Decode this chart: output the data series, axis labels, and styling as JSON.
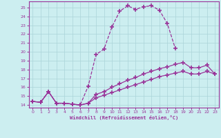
{
  "xlabel": "Windchill (Refroidissement éolien,°C)",
  "bg_color": "#cceef0",
  "line_color": "#993399",
  "grid_color": "#aad4d8",
  "xlim": [
    -0.5,
    23.5
  ],
  "ylim": [
    13.7,
    25.7
  ],
  "yticks": [
    14,
    15,
    16,
    17,
    18,
    19,
    20,
    21,
    22,
    23,
    24,
    25
  ],
  "xticks": [
    0,
    1,
    2,
    3,
    4,
    5,
    6,
    7,
    8,
    9,
    10,
    11,
    12,
    13,
    14,
    15,
    16,
    17,
    18,
    19,
    20,
    21,
    22,
    23
  ],
  "series": [
    {
      "x": [
        0,
        1,
        2,
        3,
        4,
        5,
        6,
        7,
        8,
        9,
        10,
        11,
        12,
        13,
        14,
        15,
        16,
        17,
        18,
        19,
        20,
        21,
        22,
        23
      ],
      "y": [
        14.4,
        14.3,
        15.5,
        14.2,
        14.2,
        14.1,
        14.0,
        16.1,
        19.7,
        20.3,
        22.8,
        24.6,
        25.2,
        24.8,
        25.1,
        25.2,
        24.7,
        23.2,
        20.4,
        null,
        null,
        null,
        null,
        null
      ],
      "linestyle": "--"
    },
    {
      "x": [
        0,
        1,
        2,
        3,
        4,
        5,
        6,
        7,
        8,
        9,
        10,
        11,
        12,
        13,
        14,
        15,
        16,
        17,
        18,
        19,
        20,
        21,
        22,
        23
      ],
      "y": [
        14.4,
        14.3,
        15.5,
        14.2,
        14.2,
        14.1,
        14.0,
        14.2,
        15.2,
        15.5,
        16.0,
        16.4,
        16.8,
        17.1,
        17.5,
        17.8,
        18.1,
        18.3,
        18.6,
        18.8,
        18.2,
        18.2,
        18.5,
        17.5
      ],
      "linestyle": "-"
    },
    {
      "x": [
        0,
        1,
        2,
        3,
        4,
        5,
        6,
        7,
        8,
        9,
        10,
        11,
        12,
        13,
        14,
        15,
        16,
        17,
        18,
        19,
        20,
        21,
        22,
        23
      ],
      "y": [
        14.4,
        14.3,
        15.5,
        14.2,
        14.2,
        14.1,
        14.0,
        14.2,
        14.8,
        15.1,
        15.4,
        15.7,
        16.0,
        16.3,
        16.6,
        16.9,
        17.2,
        17.4,
        17.6,
        17.8,
        17.5,
        17.5,
        17.8,
        17.5
      ],
      "linestyle": "-"
    }
  ]
}
